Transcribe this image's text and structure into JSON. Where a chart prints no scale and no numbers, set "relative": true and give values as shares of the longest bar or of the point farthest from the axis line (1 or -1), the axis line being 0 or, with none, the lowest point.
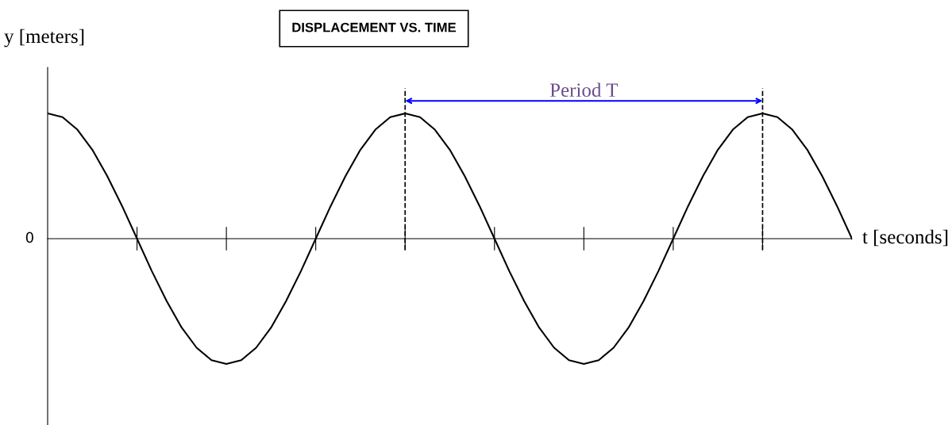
{
  "chart_data": {
    "type": "line",
    "title": "DISPLACEMENT VS. TIME",
    "xlabel": "t [seconds]",
    "ylabel": "y [meters]",
    "relative": true,
    "categories": [
      null,
      null,
      null,
      null,
      null,
      null,
      null,
      null,
      null,
      null,
      null,
      null,
      null,
      null,
      null,
      null,
      null,
      null,
      null,
      null,
      null,
      null,
      null,
      null,
      null,
      null,
      null,
      null,
      null,
      null,
      null,
      null,
      null,
      null,
      null,
      null,
      null,
      null,
      null,
      null,
      null,
      null,
      null,
      null,
      null,
      null,
      null,
      null,
      null,
      null,
      null,
      null,
      null,
      null,
      null
    ],
    "series": [
      {
        "color": "#000000",
        "values": [
          1,
          0.97,
          0.87,
          0.71,
          0.5,
          0.26,
          0,
          -0.26,
          -0.5,
          -0.71,
          -0.87,
          -0.97,
          -1,
          -0.97,
          -0.87,
          -0.71,
          -0.5,
          -0.26,
          0,
          0.26,
          0.5,
          0.71,
          0.87,
          0.97,
          1,
          0.97,
          0.87,
          0.71,
          0.5,
          0.26,
          0,
          -0.26,
          -0.5,
          -0.71,
          -0.87,
          -0.97,
          -1,
          -0.97,
          -0.87,
          -0.71,
          -0.5,
          -0.26,
          0,
          0.26,
          0.5,
          0.71,
          0.87,
          0.97,
          1,
          0.97,
          0.87,
          0.71,
          0.5,
          0.26,
          0
        ]
      }
    ],
    "annotations": [
      "Period T",
      "0"
    ],
    "marker": "none",
    "line_style": "solid",
    "legend": false
  }
}
